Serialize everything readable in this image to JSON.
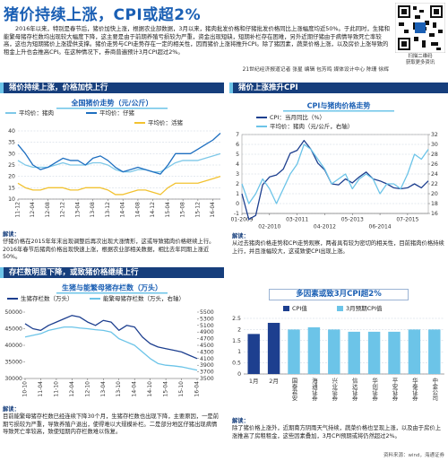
{
  "header": {
    "title": "猪价持续上涨，CPI或超2%",
    "intro": "2016年以来，特别是春节后，猪价加快上涨，根据农业部数据，3月以来，猪肉批发价格和仔猪批发价格同比上涨幅度均近50%。于此同时，生猪和能繁母猪存栏数均出现较大幅度下降，这主要是由于前期养殖亏损较为严重，资金出现短缺，短期补栏存在困难，另外近期仔猪由于病情导致死亡率较高，这也为短期猪价上涨提供支撑。猪价走势与CPI走势存在一定的相关性，因而猪价上涨将推升CPI。除了猪因素，蔬菜价格上涨，以及房价上涨导致的租金上升也会推高CPI。在这种情况下，券商普遍预计3月CPI超过2%。",
    "byline": "21世纪经济报道记者 张星 编辑 包芳鸣 媒体设计中心 陈珊 徐辉",
    "qr_caption": [
      "扫描二维码",
      "获取更多资讯"
    ]
  },
  "sections": [
    {
      "heading": "猪价持续上涨，价格加快上行",
      "note_label": "解读：",
      "note": "仔猪价格在2015年年末出现调整后再次出现大涨情形，这或导致猪肉价格继续上行。2016年春节后猪肉价格出现快速上涨，根据农业部相关数据，相比去年同期上涨近50%。"
    },
    {
      "heading": "猪价上涨推升CPI",
      "note_label": "解读：",
      "note": "从过去猪肉价格走势和CPI走势观察，两者具有较为密切的相关性，目前猪肉价格持续上行，并且涨幅较大，这或致使CPI出现上涨。"
    },
    {
      "heading": "存栏数明显下降，或致猪价格继续上行",
      "note_label": "解读：",
      "note": "目前能繁母猪存栏数已经连续下降30个月，生猪存栏数也出现下降，主要原因，一是前期亏损较为严重，导致养殖户退出，使得难以大规模补栏。二是部分地区仔猪出现病情导致死亡率较高，致使短期内存栏数难以恢复。"
    },
    {
      "heading": "多因素或致3月CPI超2%",
      "note_label": "解读：",
      "note": "除了猪价格上涨外，近期南方阴雨天气持续，蔬菜价格也呈现上涨，以及由于房价上涨推高了房租租金，这些因素叠加，3月CPI预期或将仍然超过2%。"
    }
  ],
  "chart_data": [
    {
      "type": "line",
      "title": "全国猪价走势（元/公斤）",
      "categories": [
        "11-12",
        null,
        "12-04",
        null,
        "12-08",
        null,
        "12-12",
        null,
        "13-04",
        null,
        "13-08",
        null,
        "13-12",
        null,
        "14-04",
        null,
        "14-08",
        null,
        "14-12",
        null,
        "15-04",
        null,
        "15-08",
        null,
        "15-12",
        null,
        "16-04",
        null
      ],
      "series": [
        {
          "name": "平均价：猪肉",
          "color": "#7ec8e8",
          "values": [
            27,
            25,
            24,
            24,
            24,
            25,
            26,
            25,
            25,
            25,
            26,
            26,
            25,
            23,
            22,
            22,
            23,
            23,
            22,
            22,
            24,
            26,
            27,
            27,
            27,
            28,
            29,
            30
          ]
        },
        {
          "name": "平均价：仔猪",
          "color": "#1e6fc0",
          "values": [
            34,
            30,
            25,
            23,
            24,
            26,
            28,
            27,
            27,
            25,
            28,
            29,
            27,
            24,
            22,
            23,
            24,
            23,
            22,
            21,
            25,
            30,
            30,
            30,
            32,
            34,
            36,
            39
          ]
        },
        {
          "name": "平均价：活猪",
          "color": "#f2c230",
          "values": [
            17,
            15,
            14,
            14,
            15,
            15,
            15,
            14,
            14,
            15,
            15,
            15,
            14,
            12,
            12,
            13,
            14,
            14,
            13,
            12,
            15,
            17,
            17,
            17,
            17,
            18,
            19,
            20
          ]
        }
      ],
      "ylim": [
        10,
        40
      ],
      "yticks": [
        10,
        15,
        20,
        25,
        30,
        35,
        40
      ],
      "grid": true
    },
    {
      "type": "line",
      "title": "CPI与猪肉价格走势",
      "categories": [
        "01-2009",
        null,
        null,
        null,
        "02-2010",
        null,
        null,
        null,
        "03-2011",
        null,
        null,
        null,
        "04-2012",
        null,
        null,
        null,
        "05-2013",
        null,
        null,
        null,
        "06-2014",
        null,
        null,
        null,
        "07-2015",
        null,
        null,
        null
      ],
      "series": [
        {
          "name": "CPI：当月同比（%）",
          "color": "#1d3f8f",
          "values": [
            1.0,
            -1.6,
            -1.2,
            1.9,
            2.7,
            2.9,
            3.5,
            5.1,
            5.4,
            6.4,
            5.5,
            4.1,
            3.4,
            2.0,
            1.9,
            2.5,
            2.1,
            2.7,
            3.2,
            2.5,
            2.3,
            2.0,
            1.6,
            1.5,
            1.6,
            2.0,
            1.6,
            2.3
          ]
        },
        {
          "name": "平均价：猪肉（元/公斤，右轴）",
          "color": "#6cc4e8",
          "axis": "y2",
          "values": [
            22,
            18,
            20,
            23,
            21,
            18,
            21,
            24,
            26,
            30,
            29,
            27,
            25,
            22,
            23,
            24,
            21,
            23,
            24,
            23,
            20,
            22,
            22,
            21,
            24,
            28,
            27,
            29
          ]
        }
      ],
      "ylim": [
        -1,
        7
      ],
      "yticks": [
        -1,
        0,
        1,
        2,
        3,
        4,
        5,
        6,
        7
      ],
      "y2lim": [
        16,
        32
      ],
      "y2ticks": [
        16,
        18,
        20,
        22,
        24,
        26,
        28,
        30,
        32
      ],
      "grid": true
    },
    {
      "type": "line",
      "title": "生猪与能繁母猪存栏数（万头）",
      "categories": [
        "10-10",
        null,
        "11-04",
        null,
        "11-10",
        null,
        "12-04",
        null,
        "12-10",
        null,
        "13-04",
        null,
        "13-10",
        null,
        "14-04",
        null,
        "14-10",
        null,
        "15-04",
        null,
        "15-10",
        null,
        "16-04"
      ],
      "series": [
        {
          "name": "生猪存栏数（万头）",
          "color": "#1d3f8f",
          "values": [
            46500,
            45000,
            44500,
            46000,
            47000,
            48000,
            49000,
            48500,
            47000,
            46000,
            47500,
            47000,
            44500,
            46000,
            45500,
            42500,
            40500,
            39500,
            39000,
            38500,
            38000,
            37000,
            36000
          ]
        },
        {
          "name": "能繁母猪存栏数（万头，右轴）",
          "color": "#6cc4e8",
          "axis": "y2",
          "values": [
            4750,
            4800,
            4850,
            4950,
            5000,
            5050,
            5050,
            5020,
            5000,
            4970,
            4950,
            4900,
            4700,
            4600,
            4500,
            4300,
            4100,
            3950,
            3900,
            3880,
            3850,
            3800,
            3750
          ]
        }
      ],
      "ylim": [
        30000,
        50000
      ],
      "yticks": [
        30000,
        35000,
        40000,
        45000,
        50000
      ],
      "y2lim": [
        3500,
        5500
      ],
      "y2ticks": [
        3500,
        3700,
        3900,
        4100,
        4300,
        4500,
        4700,
        4900,
        5100,
        5300,
        5500
      ],
      "grid": false
    },
    {
      "type": "bar",
      "categories": [
        "1月",
        "2月",
        "国泰君安",
        "海通证券",
        "兴业证券",
        "信达证券",
        "华创证券",
        "平安证券",
        "华泰证券",
        "中金公司"
      ],
      "series": [
        {
          "name": "CPI值",
          "color": "#1d3f8f",
          "values": [
            1.8,
            2.3,
            null,
            null,
            null,
            null,
            null,
            null,
            null,
            null
          ]
        },
        {
          "name": "3月预期CPI值",
          "color": "#6cc4e8",
          "values": [
            null,
            null,
            2.0,
            2.1,
            2.0,
            1.9,
            1.9,
            1.9,
            2.0,
            2.0
          ]
        }
      ],
      "ylim": [
        0,
        2.5
      ],
      "yticks": [
        0,
        0.5,
        1,
        1.5,
        2,
        2.5
      ],
      "grid": true
    }
  ],
  "source": "资料来源：wind，海通证券"
}
